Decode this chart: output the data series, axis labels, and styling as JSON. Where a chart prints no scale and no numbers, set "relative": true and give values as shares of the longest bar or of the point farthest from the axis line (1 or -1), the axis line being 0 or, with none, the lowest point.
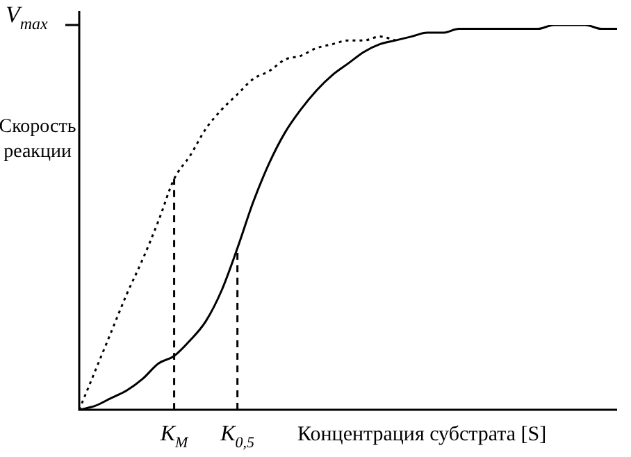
{
  "chart_data": {
    "type": "line",
    "relative": true,
    "marker": "none",
    "categories": [
      null,
      null,
      null,
      null,
      null,
      null,
      "K$_{M}$",
      null,
      null,
      null,
      "K$_{0,5}$",
      null,
      null,
      null,
      null,
      null,
      null,
      null,
      null,
      null,
      null,
      null,
      null,
      null,
      null,
      null,
      null,
      null,
      null,
      null,
      null,
      null,
      null,
      null,
      null
    ],
    "xlabel": "Концентрация субстрата [S]",
    "ylabel": "Скорость реакции",
    "annotations": [
      "V$_{max}$"
    ],
    "series": [
      {
        "color": "#000000",
        "line_style": "solid",
        "values": [
          0,
          0.01,
          0.03,
          0.05,
          0.08,
          0.12,
          0.14,
          0.18,
          0.23,
          0.31,
          0.42,
          0.54,
          0.64,
          0.72,
          0.78,
          0.83,
          0.87,
          0.9,
          0.93,
          0.95,
          0.96,
          0.97,
          0.98,
          0.98,
          0.99,
          0.99,
          0.99,
          0.99,
          0.99,
          0.99,
          1,
          1,
          1,
          0.99,
          0.99
        ]
      },
      {
        "color": "#000000",
        "line_style": "dotted",
        "values": [
          0,
          0.1,
          0.2,
          0.3,
          0.39,
          0.49,
          0.6,
          0.66,
          0.73,
          0.78,
          0.82,
          0.86,
          0.88,
          0.91,
          0.92,
          0.94,
          0.95,
          0.96,
          0.96,
          0.97,
          0.96,
          null,
          null,
          null,
          null,
          null,
          null,
          null,
          null,
          null,
          null,
          null,
          null,
          null,
          null
        ]
      },
      {
        "type": "line",
        "color": "#000000",
        "line_style": "dashed",
        "x": [
          "K$_{M}$",
          "K$_{M}$"
        ],
        "values": [
          0,
          0.6
        ]
      },
      {
        "type": "line",
        "color": "#000000",
        "line_style": "dashed",
        "x": [
          "K$_{0,5}$",
          "K$_{0,5}$"
        ],
        "values": [
          0,
          0.42
        ]
      }
    ]
  }
}
